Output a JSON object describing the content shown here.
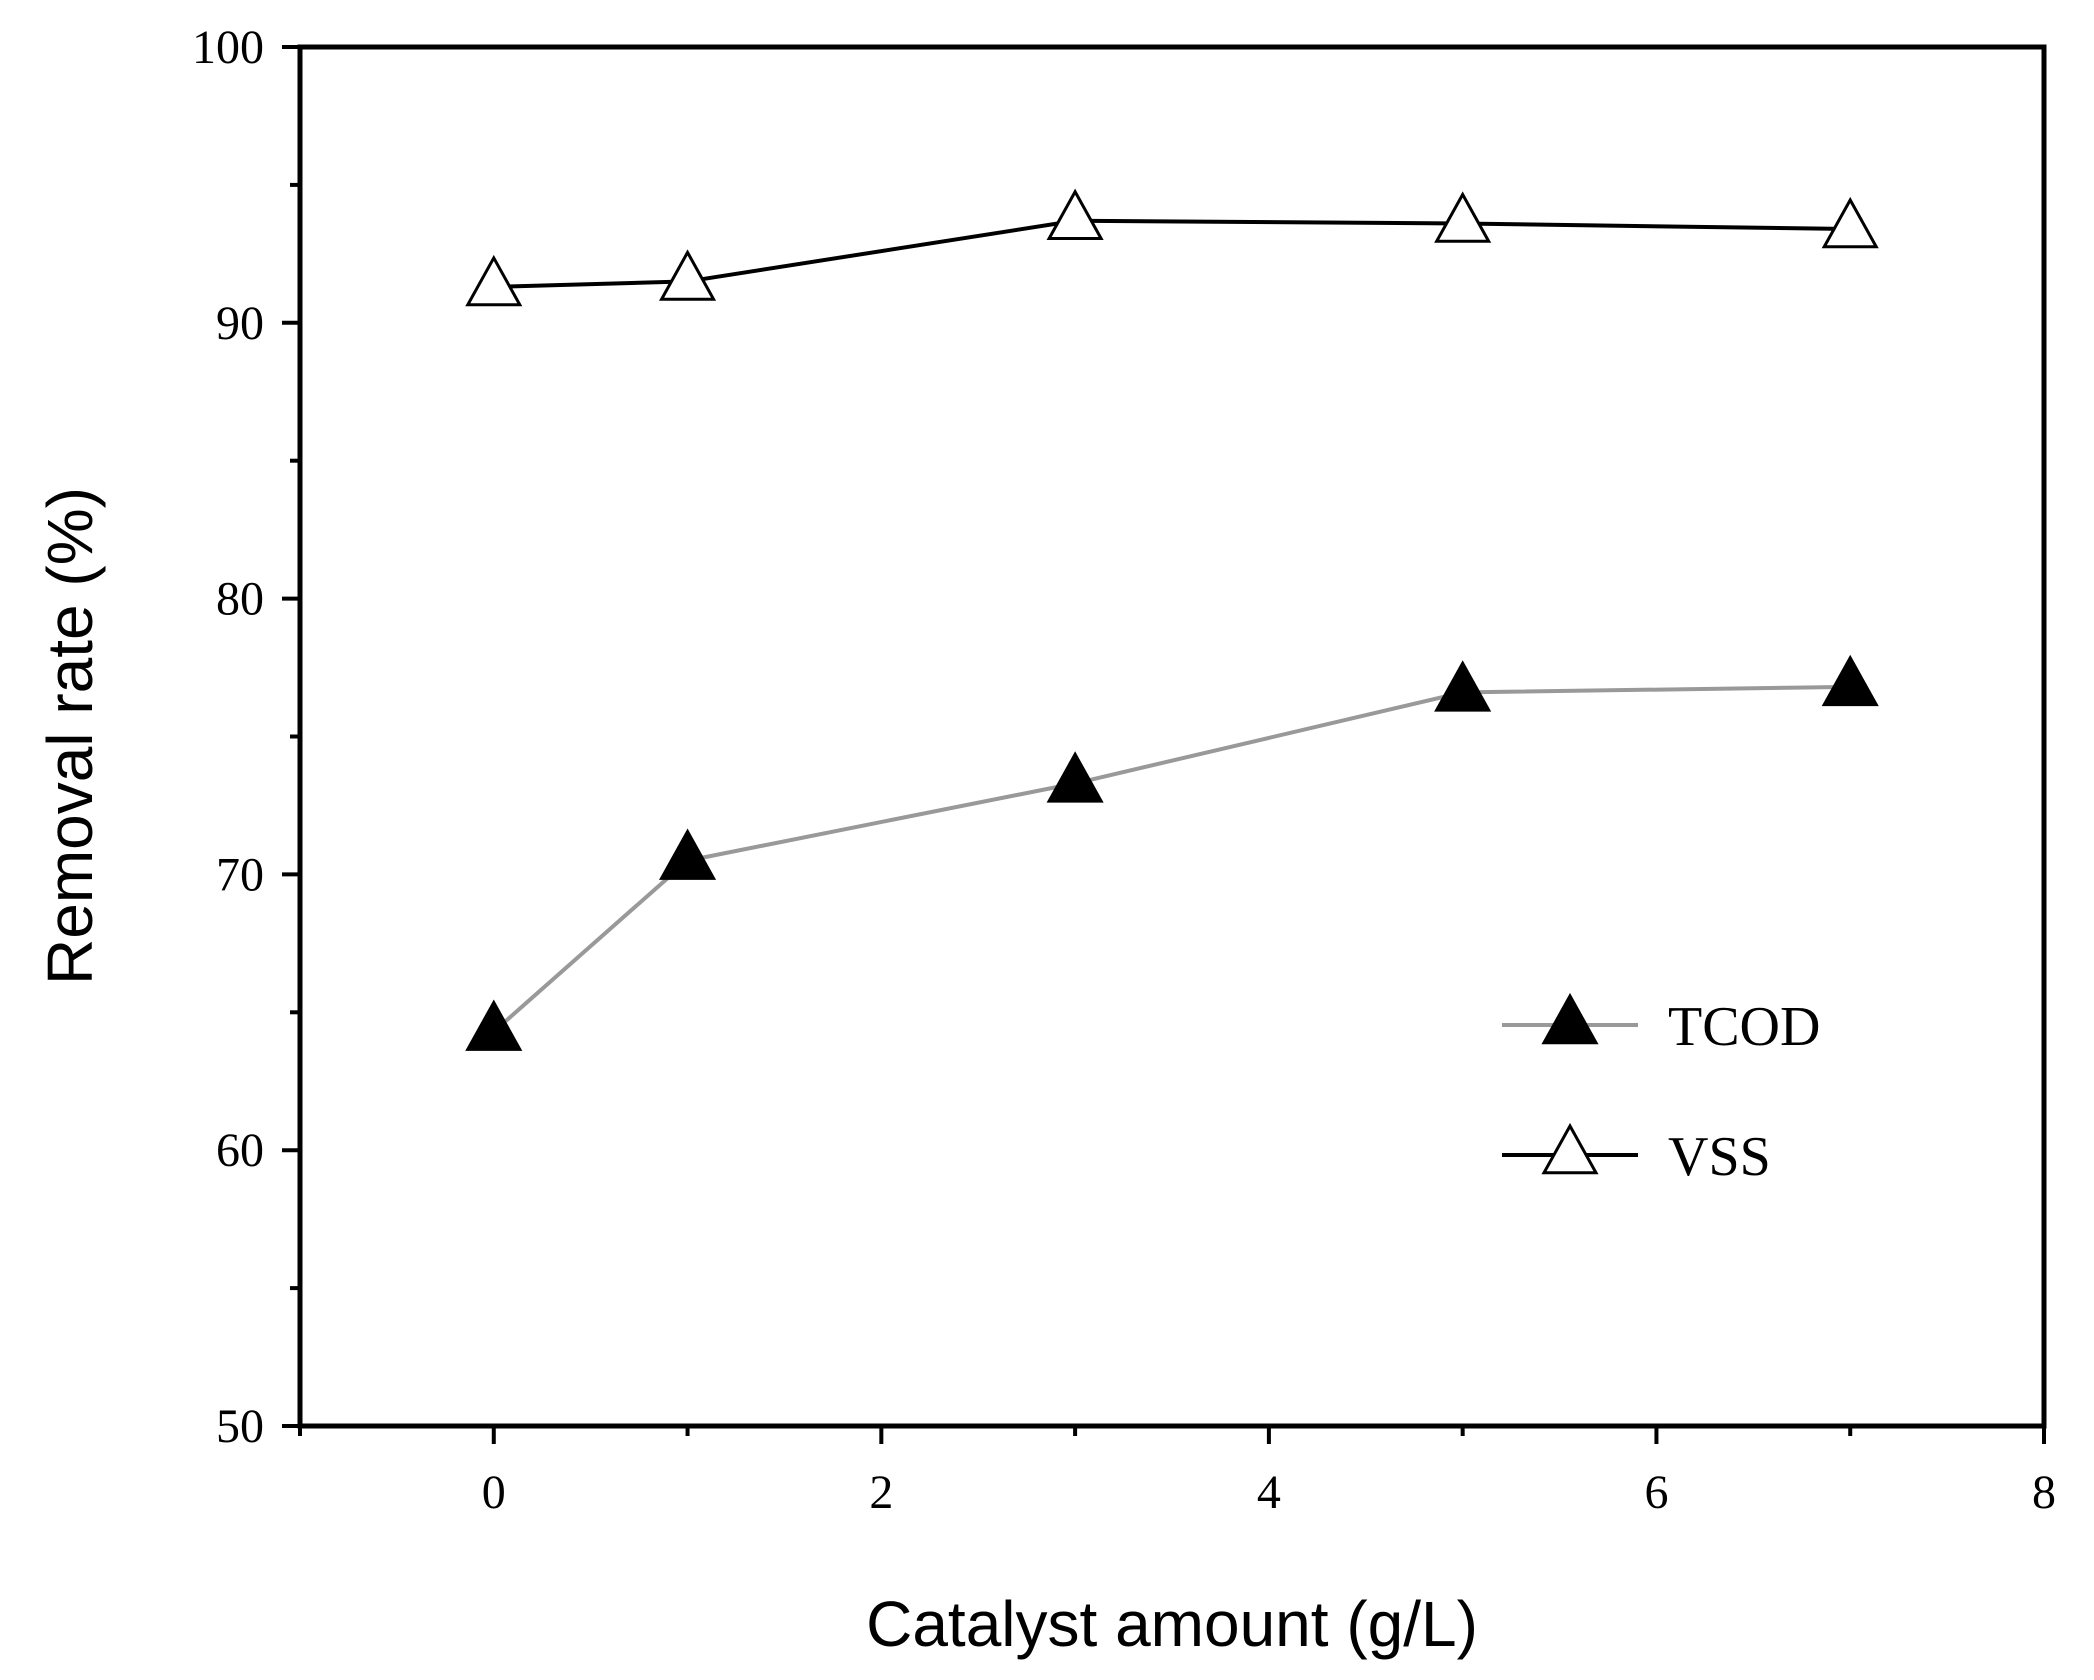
{
  "chart_data": {
    "type": "line",
    "title": "",
    "xlabel": "Catalyst amount (g/L)",
    "ylabel": "Removal rate (%)",
    "xlim": [
      -1,
      8
    ],
    "ylim": [
      50,
      100
    ],
    "x_ticks": [
      0,
      2,
      4,
      6,
      8
    ],
    "x_tick_labels": [
      "0",
      "2",
      "4",
      "6",
      "8"
    ],
    "x_minor_ticks": [
      -1,
      1,
      3,
      5,
      7
    ],
    "y_ticks": [
      50,
      60,
      70,
      80,
      90,
      100
    ],
    "y_tick_labels": [
      "50",
      "60",
      "70",
      "80",
      "90",
      "100"
    ],
    "y_minor_ticks": [
      55,
      65,
      75,
      85,
      95
    ],
    "grid": false,
    "legend_position": "bottom-right",
    "series": [
      {
        "name": "TCOD",
        "x": [
          0,
          1,
          3,
          5,
          7
        ],
        "values": [
          64.3,
          70.5,
          73.3,
          76.6,
          76.8
        ],
        "line_color": "#999999",
        "marker": "filled-triangle",
        "marker_fill": "#000000"
      },
      {
        "name": "VSS",
        "x": [
          0,
          1,
          3,
          5,
          7
        ],
        "values": [
          91.3,
          91.5,
          93.7,
          93.6,
          93.4
        ],
        "line_color": "#000000",
        "marker": "open-triangle",
        "marker_fill": "#ffffff"
      }
    ]
  }
}
